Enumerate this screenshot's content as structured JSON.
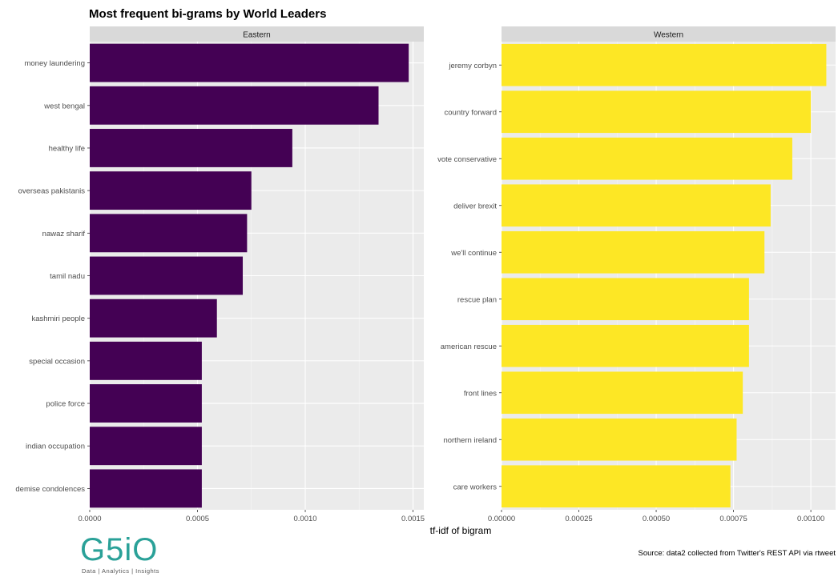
{
  "chart_data": {
    "type": "bar",
    "orientation": "horizontal",
    "title": "Most frequent bi-grams by World Leaders",
    "xlabel": "tf-idf of bigram",
    "caption": "Source: data2 collected from Twitter's REST API via rtweet",
    "grid": true,
    "facets": [
      {
        "name": "Eastern",
        "color": "#440154",
        "xlim": [
          0,
          0.00155
        ],
        "ticks": [
          0,
          0.0005,
          0.001,
          0.0015
        ],
        "tick_labels": [
          "0.0000",
          "0.0005",
          "0.0010",
          "0.0015"
        ],
        "categories": [
          "money laundering",
          "west bengal",
          "healthy life",
          "overseas pakistanis",
          "nawaz sharif",
          "tamil nadu",
          "kashmiri people",
          "special occasion",
          "police force",
          "indian occupation",
          "demise condolences"
        ],
        "values": [
          0.00148,
          0.00134,
          0.00094,
          0.00075,
          0.00073,
          0.00071,
          0.00059,
          0.00052,
          0.00052,
          0.00052,
          0.00052
        ]
      },
      {
        "name": "Western",
        "color": "#FDE725",
        "xlim": [
          0,
          0.00108
        ],
        "ticks": [
          0,
          0.00025,
          0.0005,
          0.00075,
          0.001
        ],
        "tick_labels": [
          "0.00000",
          "0.00025",
          "0.00050",
          "0.00075",
          "0.00100"
        ],
        "categories": [
          "jeremy corbyn",
          "country forward",
          "vote conservative",
          "deliver brexit",
          "we'll continue",
          "rescue plan",
          "american rescue",
          "front lines",
          "northern ireland",
          "care workers"
        ],
        "values": [
          0.00105,
          0.001,
          0.00094,
          0.00087,
          0.00085,
          0.0008,
          0.0008,
          0.00078,
          0.00076,
          0.00074
        ]
      }
    ]
  },
  "logo": {
    "text": "G5iO",
    "tagline": "Data | Analytics | Insights"
  }
}
